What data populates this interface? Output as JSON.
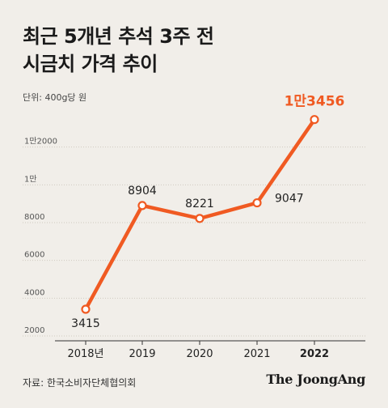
{
  "title_line1": "최근 5개년 추석 3주 전",
  "title_line2": "시금치 가격 추이",
  "unit_label": "단위: 400g당 원",
  "source": "자료: 한국소비자단체협의회",
  "brand": "The JoongAng",
  "colors": {
    "line": "#f05a22",
    "highlight": "#f05a22",
    "grid": "#cfc9c0",
    "text": "#222222"
  },
  "chart_data": {
    "type": "line",
    "title": "최근 5개년 추석 3주 전 시금치 가격 추이",
    "x": [
      "2018년",
      "2019",
      "2020",
      "2021",
      "2022"
    ],
    "values": [
      3415,
      8904,
      8221,
      9047,
      13456
    ],
    "point_labels": [
      "3415",
      "8904",
      "8221",
      "9047",
      "1만3456"
    ],
    "y_ticks": [
      2000,
      4000,
      6000,
      8000,
      10000,
      12000
    ],
    "y_tick_labels": [
      "2000",
      "4000",
      "6000",
      "8000",
      "1만",
      "1만2000"
    ],
    "ylim": [
      2000,
      14000
    ],
    "grid": true,
    "highlight_index": 4
  }
}
